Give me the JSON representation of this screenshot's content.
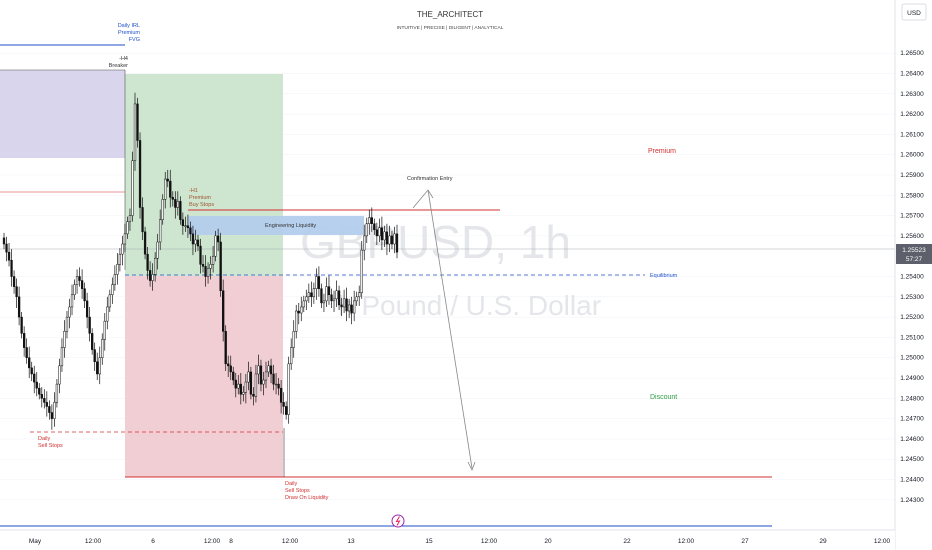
{
  "header": {
    "title": "THE_ARCHITECT",
    "subtitle": "INTUITIVE | PRECISE | DILIGENT | ANALYTICAL",
    "currency": "USD"
  },
  "watermark": {
    "symbol": "GBPUSD, 1h",
    "description": "h Pound / U.S. Dollar"
  },
  "price_label": {
    "price": "1.25523",
    "countdown": "57:27"
  },
  "annotations": {
    "daily_irl": [
      "Daily IRL",
      "Premium",
      "FVG"
    ],
    "h4_breaker": [
      "-H4",
      "Breaker"
    ],
    "h1_premium": [
      "-H1",
      "Premium",
      "Buy Stops"
    ],
    "engineering": "Engineering Liquidity",
    "confirmation": "Confirmation Entry",
    "premium": "Premium",
    "equilibrium": "Equilibrium",
    "discount": "Discount",
    "daily_sell_left": [
      "Daily",
      "Sell Stops"
    ],
    "daily_sell_bottom": [
      "Daily",
      "Sell Stops",
      "Draw On Liquidity"
    ]
  },
  "colors": {
    "bull": "#111111",
    "bear": "#111111",
    "green_zone": "#c9e3cb",
    "red_zone": "#f0c9cf",
    "purple_zone": "#d7d3ec",
    "blue_zone": "#b3cdec",
    "red_line": "#d32f2f",
    "blue_line": "#1e4fc9",
    "grid": "#f0f2f5",
    "axis_text": "#131722"
  },
  "chart_data": {
    "type": "candlestick",
    "symbol": "GBPUSD",
    "timeframe": "1h",
    "y_axis": {
      "min": 1.2425,
      "max": 1.2655,
      "ticks": [
        "1.26500",
        "1.26400",
        "1.26300",
        "1.26200",
        "1.26100",
        "1.26000",
        "1.25900",
        "1.25800",
        "1.25700",
        "1.25600",
        "1.25400",
        "1.25300",
        "1.25200",
        "1.25100",
        "1.25000",
        "1.24900",
        "1.24800",
        "1.24700",
        "1.24600",
        "1.24500",
        "1.24400",
        "1.24300"
      ]
    },
    "x_axis": {
      "ticks": [
        "May",
        "12:00",
        "6",
        "12:00",
        "8",
        "12:00",
        "13",
        "15",
        "12:00",
        "20",
        "22",
        "12:00",
        "27",
        "29",
        "12:00"
      ]
    },
    "levels": {
      "daily_irl": 1.26467,
      "buy_stops": 1.25717,
      "current": 1.25523,
      "equilibrium": 1.2541,
      "daily_sell_stops": 1.24682,
      "draw_on_liquidity": 1.24455,
      "h4_breaker_bottom": 1.2596
    },
    "closes": [
      1.2556,
      1.2552,
      1.2548,
      1.254,
      1.2535,
      1.253,
      1.252,
      1.2512,
      1.2505,
      1.25,
      1.2495,
      1.2492,
      1.2488,
      1.2485,
      1.2482,
      1.248,
      1.2478,
      1.2476,
      1.2473,
      1.247,
      1.2478,
      1.2487,
      1.2496,
      1.2505,
      1.2513,
      1.252,
      1.2525,
      1.2531,
      1.2536,
      1.254,
      1.2538,
      1.2534,
      1.2528,
      1.252,
      1.2512,
      1.2504,
      1.2498,
      1.2492,
      1.25,
      1.2509,
      1.2518,
      1.2525,
      1.2531,
      1.2536,
      1.2541,
      1.2546,
      1.2551,
      1.2556,
      1.2561,
      1.2567,
      1.257,
      1.2597,
      1.2625,
      1.2607,
      1.2574,
      1.2562,
      1.2551,
      1.2543,
      1.2538,
      1.2541,
      1.2549,
      1.2557,
      1.2568,
      1.2578,
      1.2588,
      1.2587,
      1.2579,
      1.2578,
      1.2574,
      1.2577,
      1.2568,
      1.2565,
      1.2565,
      1.2564,
      1.2561,
      1.2556,
      1.2558,
      1.2555,
      1.2546,
      1.2545,
      1.254,
      1.2544,
      1.2546,
      1.255,
      1.256,
      1.2557,
      1.2533,
      1.2513,
      1.2497,
      1.2496,
      1.2493,
      1.2489,
      1.2485,
      1.2487,
      1.2482,
      1.2483,
      1.2488,
      1.2493,
      1.2482,
      1.2481,
      1.2492,
      1.2496,
      1.2487,
      1.2489,
      1.2493,
      1.2496,
      1.2492,
      1.2487,
      1.2487,
      1.2485,
      1.2478,
      1.2476,
      1.2472,
      1.2497,
      1.2505,
      1.2513,
      1.2523,
      1.2522,
      1.2525,
      1.2528,
      1.253,
      1.2532,
      1.253,
      1.2534,
      1.254,
      1.2534,
      1.2527,
      1.2528,
      1.2535,
      1.2531,
      1.2528,
      1.2529,
      1.2533,
      1.2526,
      1.2525,
      1.2529,
      1.2523,
      1.2526,
      1.2522,
      1.2528,
      1.253,
      1.2532,
      1.2553,
      1.256,
      1.2566,
      1.2569,
      1.2566,
      1.2563,
      1.256,
      1.2564,
      1.2558,
      1.2562,
      1.2556,
      1.256,
      1.2556,
      1.2561,
      1.2552
    ]
  }
}
